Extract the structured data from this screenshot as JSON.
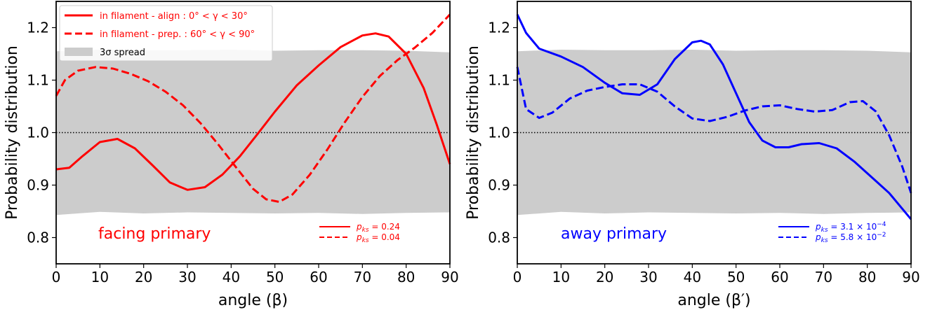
{
  "chart_data": [
    {
      "type": "line",
      "xlabel": "angle (β)",
      "ylabel": "Probability distribution",
      "xlim": [
        0,
        90
      ],
      "ylim": [
        0.75,
        1.25
      ],
      "xticks": [
        0,
        10,
        20,
        30,
        40,
        50,
        60,
        70,
        80,
        90
      ],
      "yticks": [
        0.8,
        0.9,
        1.0,
        1.1,
        1.2
      ],
      "xtick_labels": [
        "0",
        "10",
        "20",
        "30",
        "40",
        "50",
        "60",
        "70",
        "80",
        "90"
      ],
      "ytick_labels": [
        "0.8",
        "0.9",
        "1.0",
        "1.1",
        "1.2"
      ],
      "grid": false,
      "reference_line": 1.0,
      "annotation": "facing primary",
      "color": "#ff0000",
      "band": {
        "name": "3σ spread",
        "x": [
          0,
          10,
          20,
          30,
          40,
          50,
          60,
          70,
          80,
          90
        ],
        "lower": [
          0.843,
          0.849,
          0.846,
          0.848,
          0.847,
          0.846,
          0.847,
          0.845,
          0.847,
          0.848
        ],
        "upper": [
          1.155,
          1.158,
          1.157,
          1.157,
          1.158,
          1.156,
          1.157,
          1.157,
          1.156,
          1.153
        ]
      },
      "legend": {
        "position": "upper-left",
        "entries": [
          {
            "label": "in filament - align : 0° < γ < 30°",
            "style": "solid"
          },
          {
            "label": "in filament - prep. : 60° < γ < 90°",
            "style": "dashed"
          },
          {
            "label": "3σ spread",
            "style": "band"
          }
        ]
      },
      "pvalue_legend": {
        "position": "lower-right",
        "entries": [
          {
            "label": "p_ks = 0.24",
            "sym": "p",
            "sub": "ks",
            "rest": " = 0.24",
            "style": "solid"
          },
          {
            "label": "p_ks = 0.04",
            "sym": "p",
            "sub": "ks",
            "rest": " = 0.04",
            "style": "dashed"
          }
        ]
      },
      "series": [
        {
          "style": "solid",
          "x": [
            0,
            3,
            6,
            10,
            14,
            18,
            22,
            26,
            30,
            34,
            38,
            42,
            46,
            50,
            55,
            60,
            65,
            70,
            73,
            76,
            80,
            84,
            87,
            90
          ],
          "y": [
            0.93,
            0.933,
            0.955,
            0.982,
            0.988,
            0.97,
            0.938,
            0.905,
            0.891,
            0.896,
            0.92,
            0.955,
            0.997,
            1.04,
            1.09,
            1.128,
            1.163,
            1.185,
            1.189,
            1.183,
            1.15,
            1.085,
            1.015,
            0.94
          ]
        },
        {
          "style": "dashed",
          "x": [
            0,
            2,
            5,
            9,
            13,
            17,
            21,
            25,
            29,
            33,
            37,
            41,
            45,
            48,
            51,
            54,
            58,
            62,
            66,
            70,
            74,
            78,
            82,
            86,
            90
          ],
          "y": [
            1.07,
            1.1,
            1.118,
            1.125,
            1.122,
            1.112,
            1.098,
            1.078,
            1.052,
            1.018,
            0.978,
            0.935,
            0.893,
            0.873,
            0.868,
            0.882,
            0.92,
            0.968,
            1.02,
            1.068,
            1.108,
            1.138,
            1.162,
            1.19,
            1.225
          ]
        }
      ]
    },
    {
      "type": "line",
      "xlabel": "angle (β′)",
      "ylabel": "Probability distribution",
      "xlim": [
        0,
        90
      ],
      "ylim": [
        0.75,
        1.25
      ],
      "xticks": [
        0,
        10,
        20,
        30,
        40,
        50,
        60,
        70,
        80,
        90
      ],
      "yticks": [
        0.8,
        0.9,
        1.0,
        1.1,
        1.2
      ],
      "xtick_labels": [
        "0",
        "10",
        "20",
        "30",
        "40",
        "50",
        "60",
        "70",
        "80",
        "90"
      ],
      "ytick_labels": [
        "0.8",
        "0.9",
        "1.0",
        "1.1",
        "1.2"
      ],
      "grid": false,
      "reference_line": 1.0,
      "annotation": "away primary",
      "color": "#0000ff",
      "band": {
        "name": "3σ spread",
        "x": [
          0,
          10,
          20,
          30,
          40,
          50,
          60,
          70,
          80,
          90
        ],
        "lower": [
          0.843,
          0.849,
          0.846,
          0.848,
          0.847,
          0.846,
          0.847,
          0.845,
          0.847,
          0.848
        ],
        "upper": [
          1.155,
          1.158,
          1.157,
          1.157,
          1.158,
          1.156,
          1.157,
          1.157,
          1.156,
          1.153
        ]
      },
      "pvalue_legend": {
        "position": "lower-right",
        "entries": [
          {
            "label": "p_ks = 3.1 × 10^−4",
            "sym": "p",
            "sub": "ks",
            "rest": " = 3.1 × 10",
            "sup": "−4",
            "style": "solid"
          },
          {
            "label": "p_ks = 5.8 × 10^−2",
            "sym": "p",
            "sub": "ks",
            "rest": " = 5.8 × 10",
            "sup": "−2",
            "style": "dashed"
          }
        ]
      },
      "series": [
        {
          "style": "solid",
          "x": [
            0,
            2,
            5,
            10,
            15,
            20,
            24,
            28,
            32,
            36,
            40,
            42,
            44,
            47,
            50,
            53,
            56,
            59,
            62,
            65,
            69,
            73,
            77,
            81,
            85,
            88,
            90
          ],
          "y": [
            1.225,
            1.19,
            1.16,
            1.145,
            1.125,
            1.095,
            1.075,
            1.072,
            1.092,
            1.14,
            1.172,
            1.175,
            1.168,
            1.13,
            1.075,
            1.02,
            0.985,
            0.972,
            0.972,
            0.978,
            0.98,
            0.97,
            0.945,
            0.915,
            0.885,
            0.855,
            0.835
          ]
        },
        {
          "style": "dashed",
          "x": [
            0,
            2,
            5,
            8,
            12,
            16,
            20,
            24,
            28,
            32,
            36,
            40,
            44,
            48,
            52,
            56,
            60,
            64,
            68,
            72,
            76,
            79,
            82,
            85,
            88,
            90
          ],
          "y": [
            1.125,
            1.045,
            1.028,
            1.038,
            1.065,
            1.08,
            1.087,
            1.092,
            1.092,
            1.078,
            1.05,
            1.027,
            1.022,
            1.03,
            1.042,
            1.05,
            1.052,
            1.045,
            1.04,
            1.043,
            1.058,
            1.06,
            1.04,
            0.995,
            0.935,
            0.885
          ]
        }
      ]
    }
  ]
}
